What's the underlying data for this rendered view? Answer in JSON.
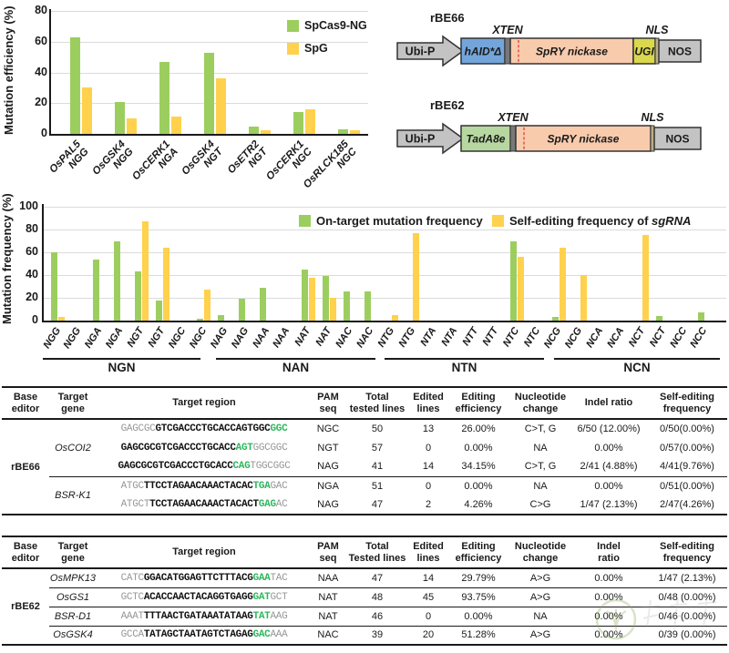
{
  "colors": {
    "bar_green": "#9CCE5F",
    "bar_yellow": "#FFD14D",
    "seq_dim": "#979797",
    "seq_bold": "#111111",
    "seq_pam": "#2CB85C",
    "axis": "#1a1a1a"
  },
  "chart_data": [
    {
      "type": "bar",
      "title": "",
      "ylabel": "Mutation efficiency (%)",
      "xlabel": "",
      "ylim": [
        0,
        80
      ],
      "yticks": [
        0,
        20,
        40,
        60,
        80
      ],
      "grid": true,
      "legend_position": "top-right",
      "categories": [
        {
          "gene": "OsPAL5",
          "pam": "NGG"
        },
        {
          "gene": "OsGSK4",
          "pam": "NGG"
        },
        {
          "gene": "OsCERK1",
          "pam": "NGA"
        },
        {
          "gene": "OsGSK4",
          "pam": "NGT"
        },
        {
          "gene": "OsETR2",
          "pam": "NGT"
        },
        {
          "gene": "OsCERK1",
          "pam": "NGC"
        },
        {
          "gene": "OsRLCK185",
          "pam": "NGC"
        }
      ],
      "series": [
        {
          "name": "SpCas9-NG",
          "color": "#9CCE5F",
          "values": [
            63,
            21,
            47,
            53,
            5,
            14,
            3
          ]
        },
        {
          "name": "SpG",
          "color": "#FFD14D",
          "values": [
            30,
            10,
            11,
            36,
            2.5,
            16,
            2.5
          ]
        }
      ]
    },
    {
      "type": "bar",
      "title": "",
      "ylabel": "Mutation frequency (%)",
      "xlabel": "",
      "ylim": [
        0,
        100
      ],
      "yticks": [
        0,
        20,
        40,
        60,
        80,
        100
      ],
      "grid": true,
      "legend_position": "top-inside",
      "groups": [
        {
          "label": "NGN",
          "pams": [
            "NGG",
            "NGG",
            "NGA",
            "NGA",
            "NGT",
            "NGT",
            "NGC",
            "NGC"
          ]
        },
        {
          "label": "NAN",
          "pams": [
            "NAG",
            "NAG",
            "NAA",
            "NAA",
            "NAT",
            "NAT",
            "NAC",
            "NAC"
          ]
        },
        {
          "label": "NTN",
          "pams": [
            "NTG",
            "NTG",
            "NTA",
            "NTA",
            "NTT",
            "NTT",
            "NTC",
            "NTC"
          ]
        },
        {
          "label": "NCN",
          "pams": [
            "NCG",
            "NCG",
            "NCA",
            "NCA",
            "NCT",
            "NCT",
            "NCC",
            "NCC"
          ]
        }
      ],
      "series": [
        {
          "name": "On-target mutation frequency",
          "color": "#9CCE5F",
          "values": [
            60,
            0,
            54,
            70,
            43,
            18,
            0,
            2,
            5,
            19,
            29,
            0,
            45,
            39,
            26,
            26,
            0,
            0,
            0,
            0,
            0,
            0,
            70,
            0,
            3,
            0,
            0,
            0,
            0,
            4,
            0,
            7
          ]
        },
        {
          "name": "Self-editing frequency of sgRNA",
          "italic_word": "sgRNA",
          "color": "#FFD14D",
          "values": [
            3,
            0,
            0,
            0,
            87,
            64,
            0,
            27,
            0,
            0,
            0,
            0,
            38,
            20,
            0,
            0,
            5,
            77,
            0,
            0,
            0,
            0,
            56,
            0,
            64,
            40,
            0,
            0,
            75,
            0,
            0,
            0
          ]
        }
      ]
    }
  ],
  "constructs": [
    {
      "name": "rBE66",
      "elements": [
        {
          "kind": "promoter-arrow",
          "label": "Ubi-P",
          "color": "#C3C3C3"
        },
        {
          "kind": "box",
          "label": "hAID*Δ",
          "color": "#73A5DB",
          "italic": true
        },
        {
          "kind": "linker",
          "label": "XTEN",
          "color": "#787878",
          "label_above": true
        },
        {
          "kind": "box",
          "label": "SpRY nickase",
          "color": "#F8CBAD",
          "italic": true,
          "nick_mark": true
        },
        {
          "kind": "box",
          "label": "UGI",
          "color": "#D9D84F",
          "italic": true
        },
        {
          "kind": "linker",
          "label": "NLS",
          "color": "#BBAF88",
          "label_above": true
        },
        {
          "kind": "terminator-box",
          "label": "NOS",
          "color": "#C3C3C3"
        }
      ]
    },
    {
      "name": "rBE62",
      "elements": [
        {
          "kind": "promoter-arrow",
          "label": "Ubi-P",
          "color": "#C3C3C3"
        },
        {
          "kind": "box",
          "label": "TadA8e",
          "color": "#B7D7A0",
          "italic": true
        },
        {
          "kind": "linker",
          "label": "XTEN",
          "color": "#787878",
          "label_above": true
        },
        {
          "kind": "box",
          "label": "SpRY nickase",
          "color": "#F8CBAD",
          "italic": true,
          "nick_mark": true
        },
        {
          "kind": "linker",
          "label": "NLS",
          "color": "#BBAF88",
          "label_above": true
        },
        {
          "kind": "terminator-box",
          "label": "NOS",
          "color": "#C3C3C3"
        }
      ]
    }
  ],
  "tables": [
    {
      "editor": "rBE66",
      "headers": [
        [
          "Base",
          "editor"
        ],
        [
          "Target",
          "gene"
        ],
        [
          "Target region"
        ],
        [
          "PAM",
          "seq"
        ],
        [
          "Total",
          "tested lines"
        ],
        [
          "Edited",
          "lines"
        ],
        [
          "Editing",
          "efficiency"
        ],
        [
          "Nucleotide",
          "change"
        ],
        [
          "Indel ratio"
        ],
        [
          "Self-editing",
          "frequency"
        ]
      ],
      "groups": [
        {
          "gene": "OsCOI2",
          "rows": [
            {
              "seq": [
                [
                  "GAGCGC",
                  "dim"
                ],
                [
                  "GTCGACCCTGCACCAGTGGC",
                  "bold"
                ],
                [
                  "GGC",
                  "pam"
                ]
              ],
              "pam": "NGC",
              "total": "50",
              "edited": "13",
              "eff": "26.00%",
              "change": "C>T, G",
              "indel": "6/50 (12.00%)",
              "selfed": "0/50(0.00%)"
            },
            {
              "seq": [
                [
                  "GAGCGCGTCGACCCTGCACC",
                  "bold"
                ],
                [
                  "AGT",
                  "pam"
                ],
                [
                  "GGCGGC",
                  "dim"
                ]
              ],
              "pam": "NGT",
              "total": "57",
              "edited": "0",
              "eff": "0.00%",
              "change": "NA",
              "indel": "0.00%",
              "selfed": "0/57(0.00%)"
            },
            {
              "seq": [
                [
                  "GAGCGCGTCGACCCTGCACC",
                  "bold"
                ],
                [
                  "CAG",
                  "pam"
                ],
                [
                  "TGGCGGC",
                  "dim"
                ]
              ],
              "pam": "NAG",
              "total": "41",
              "edited": "14",
              "eff": "34.15%",
              "change": "C>T, G",
              "indel": "2/41 (4.88%)",
              "selfed": "4/41(9.76%)"
            }
          ]
        },
        {
          "gene": "BSR-K1",
          "rows": [
            {
              "seq": [
                [
                  "ATGC",
                  "dim"
                ],
                [
                  "TTCCTAGAACAAACTACAC",
                  "bold"
                ],
                [
                  "TGA",
                  "pam"
                ],
                [
                  "GAC",
                  "dim"
                ]
              ],
              "pam": "NGA",
              "total": "51",
              "edited": "0",
              "eff": "0.00%",
              "change": "NA",
              "indel": "0.00%",
              "selfed": "0/51(0.00%)"
            },
            {
              "seq": [
                [
                  "ATGCT",
                  "dim"
                ],
                [
                  "TCCTAGAACAAACTACACT",
                  "bold"
                ],
                [
                  "GAG",
                  "pam"
                ],
                [
                  "AC",
                  "dim"
                ]
              ],
              "pam": "NAG",
              "total": "47",
              "edited": "2",
              "eff": "4.26%",
              "change": "C>G",
              "indel": "1/47 (2.13%)",
              "selfed": "2/47(4.26%)"
            }
          ]
        }
      ]
    },
    {
      "editor": "rBE62",
      "headers": [
        [
          "Base",
          "editor"
        ],
        [
          "Target",
          "gene"
        ],
        [
          "Target region"
        ],
        [
          "PAM",
          "seq"
        ],
        [
          "Total",
          "Tested lines"
        ],
        [
          "Edited",
          "lines"
        ],
        [
          "Editing",
          "efficiency"
        ],
        [
          "Nucleotide",
          "change"
        ],
        [
          "Indel",
          "ratio"
        ],
        [
          "Self-editing",
          "frequency"
        ]
      ],
      "groups": [
        {
          "gene": "OsMPK13",
          "rows": [
            {
              "seq": [
                [
                  "CATC",
                  "dim"
                ],
                [
                  "GGACATGGAGTTCTTTACG",
                  "bold"
                ],
                [
                  "GAA",
                  "pam"
                ],
                [
                  "TAC",
                  "dim"
                ]
              ],
              "pam": "NAA",
              "total": "47",
              "edited": "14",
              "eff": "29.79%",
              "change": "A>G",
              "indel": "0.00%",
              "selfed": "1/47 (2.13%)"
            }
          ]
        },
        {
          "gene": "OsGS1",
          "rows": [
            {
              "seq": [
                [
                  "GCTC",
                  "dim"
                ],
                [
                  "ACACCAACTACAGGTGAGG",
                  "bold"
                ],
                [
                  "GAT",
                  "pam"
                ],
                [
                  "GCT",
                  "dim"
                ]
              ],
              "pam": "NAT",
              "total": "48",
              "edited": "45",
              "eff": "93.75%",
              "change": "A>G",
              "indel": "0.00%",
              "selfed": "0/48 (0.00%)"
            }
          ]
        },
        {
          "gene": "BSR-D1",
          "rows": [
            {
              "seq": [
                [
                  "AAAT",
                  "dim"
                ],
                [
                  "TTTAACTGATAAATATAAG",
                  "bold"
                ],
                [
                  "TAT",
                  "pam"
                ],
                [
                  "AAG",
                  "dim"
                ]
              ],
              "pam": "NAT",
              "total": "46",
              "edited": "0",
              "eff": "0.00%",
              "change": "NA",
              "indel": "0.00%",
              "selfed": "0/46 (0.00%)"
            }
          ]
        },
        {
          "gene": "OsGSK4",
          "rows": [
            {
              "seq": [
                [
                  "GCCA",
                  "dim"
                ],
                [
                  "TATAGCTAATAGTCTAGAG",
                  "bold"
                ],
                [
                  "GAC",
                  "pam"
                ],
                [
                  "AAA",
                  "dim"
                ]
              ],
              "pam": "NAC",
              "total": "39",
              "edited": "20",
              "eff": "51.28%",
              "change": "A>G",
              "indel": "0.00%",
              "selfed": "0/39 (0.00%)"
            }
          ]
        }
      ]
    }
  ],
  "watermark": {
    "type": "logo-watermark"
  }
}
